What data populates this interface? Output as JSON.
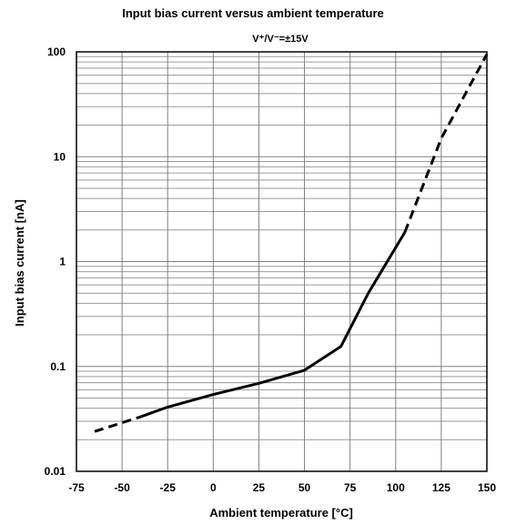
{
  "chart_data": {
    "type": "line",
    "title": "Input bias current versus ambient temperature",
    "subtitle": "V⁺/V⁻=±15V",
    "xlabel": "Ambient temperature [°C]",
    "ylabel": "Input bias current [nA]",
    "xlim": [
      -75,
      150
    ],
    "ylim": [
      0.01,
      100
    ],
    "y_scale": "log",
    "x_ticks": [
      "-75",
      "-50",
      "-25",
      "0",
      "25",
      "50",
      "75",
      "100",
      "125",
      "150"
    ],
    "y_ticks": [
      "0.01",
      "0.1",
      "1",
      "10",
      "100"
    ],
    "grid": true,
    "series": [
      {
        "name": "",
        "style": "dashed",
        "x": [
          -65,
          -40
        ],
        "y": [
          0.024,
          0.033
        ]
      },
      {
        "name": "",
        "style": "solid",
        "x": [
          -40,
          -25,
          0,
          25,
          50,
          70,
          85,
          105
        ],
        "y": [
          0.033,
          0.041,
          0.054,
          0.069,
          0.092,
          0.155,
          0.5,
          1.9
        ]
      },
      {
        "name": "",
        "style": "dashed",
        "x": [
          105,
          125,
          150
        ],
        "y": [
          1.9,
          15,
          95
        ]
      }
    ],
    "colors": {
      "line": "#000000",
      "grid": "#8c8c8c"
    }
  }
}
